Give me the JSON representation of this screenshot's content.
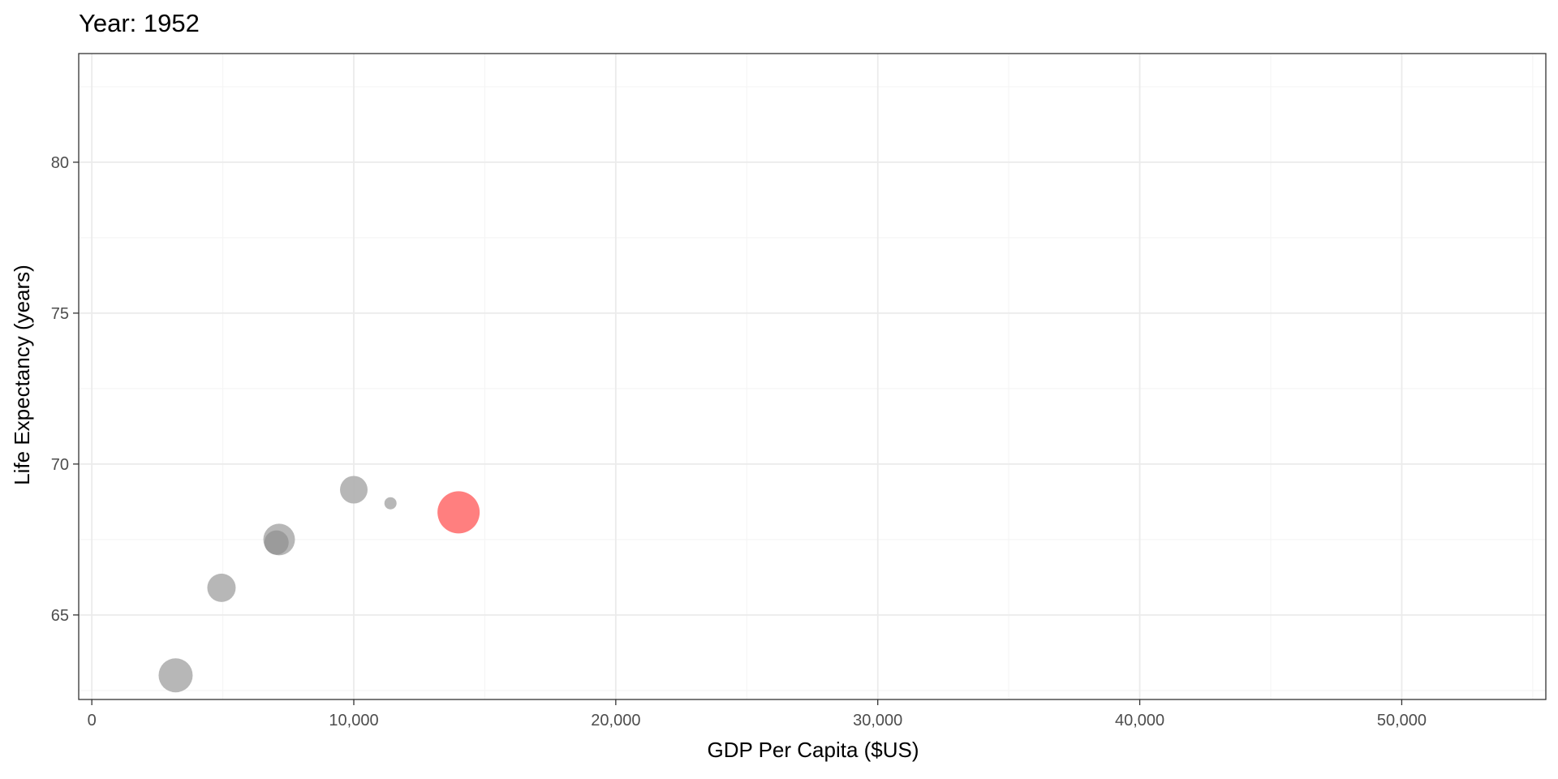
{
  "chart_data": {
    "type": "scatter",
    "title": "Year: 1952",
    "xlabel": "GDP Per Capita ($US)",
    "ylabel": "Life Expectancy (years)",
    "xlim": [
      -500,
      55500
    ],
    "ylim": [
      62.2,
      83.6
    ],
    "xticks": [
      0,
      10000,
      20000,
      30000,
      40000,
      50000
    ],
    "xtick_labels": [
      "0",
      "10,000",
      "20,000",
      "30,000",
      "40,000",
      "50,000"
    ],
    "yticks": [
      65,
      70,
      75,
      80
    ],
    "ytick_labels": [
      "65",
      "70",
      "75",
      "80"
    ],
    "grid": true,
    "legend": "none",
    "colors": {
      "highlight": "#ff7f7f",
      "other": "#b3b3b3",
      "other_dark": "#999999",
      "grid_major": "#ebebeb",
      "grid_minor": "#f5f5f5",
      "panel_border": "#333333"
    },
    "points": [
      {
        "x": 3200,
        "y": 63.0,
        "size": 4.2,
        "highlight": false
      },
      {
        "x": 4950,
        "y": 65.9,
        "size": 3.5,
        "highlight": false
      },
      {
        "x": 7150,
        "y": 67.5,
        "size": 3.9,
        "highlight": false
      },
      {
        "x": 7050,
        "y": 67.4,
        "size": 3.0,
        "highlight": false,
        "dark": true
      },
      {
        "x": 10000,
        "y": 69.15,
        "size": 3.4,
        "highlight": false
      },
      {
        "x": 11400,
        "y": 68.7,
        "size": 1.5,
        "highlight": false
      },
      {
        "x": 14000,
        "y": 68.4,
        "size": 5.2,
        "highlight": true
      }
    ]
  }
}
